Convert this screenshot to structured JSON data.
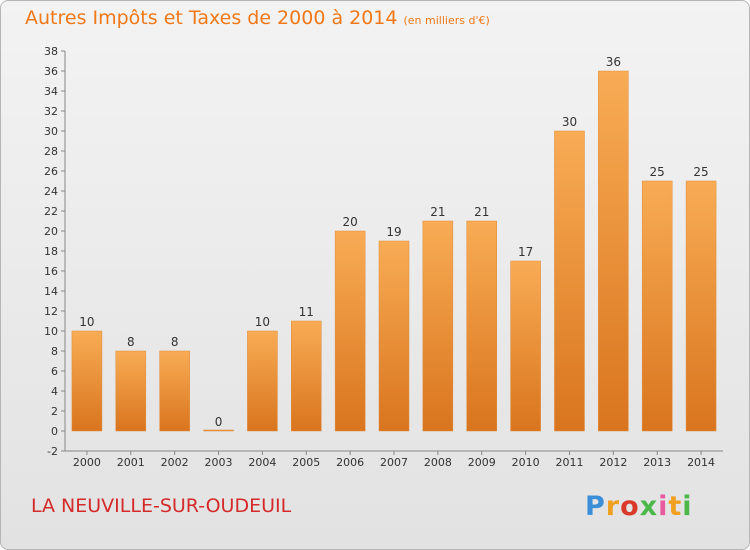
{
  "title": "Autres Impôts et Taxes de 2000 à 2014",
  "subtitle": "(en milliers d'€)",
  "commune": "LA NEUVILLE-SUR-OUDEUIL",
  "logo": [
    "P",
    "r",
    "o",
    "x",
    "i",
    "t",
    "i"
  ],
  "colors": {
    "bar": "#f08a2a",
    "bar_light": "#f7a850",
    "title": "#f07818",
    "commune": "#d42a2a"
  },
  "chart_data": {
    "type": "bar",
    "categories": [
      "2000",
      "2001",
      "2002",
      "2003",
      "2004",
      "2005",
      "2006",
      "2007",
      "2008",
      "2009",
      "2010",
      "2011",
      "2012",
      "2013",
      "2014"
    ],
    "values": [
      10,
      8,
      8,
      0,
      10,
      11,
      20,
      19,
      21,
      21,
      17,
      30,
      36,
      25,
      25
    ],
    "ylim": [
      -2,
      38
    ],
    "ytick_step": 2,
    "grid": false,
    "legend": "none"
  }
}
